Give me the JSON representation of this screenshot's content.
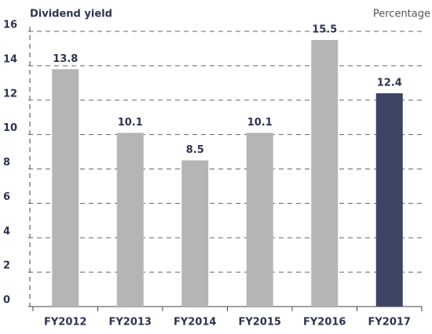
{
  "chart_data": {
    "type": "bar",
    "title": "Dividend yield",
    "unit_label": "Percentage",
    "categories": [
      "FY2012",
      "FY2013",
      "FY2014",
      "FY2015",
      "FY2016",
      "FY2017"
    ],
    "values": [
      13.8,
      10.1,
      8.5,
      10.1,
      15.5,
      12.4
    ],
    "colors": [
      "#b5b5b5",
      "#b5b5b5",
      "#b5b5b5",
      "#b5b5b5",
      "#b5b5b5",
      "#3d4466"
    ],
    "ylim": [
      0,
      16
    ],
    "yticks": [
      0,
      2,
      4,
      6,
      8,
      10,
      12,
      14,
      16
    ],
    "grid": true
  }
}
